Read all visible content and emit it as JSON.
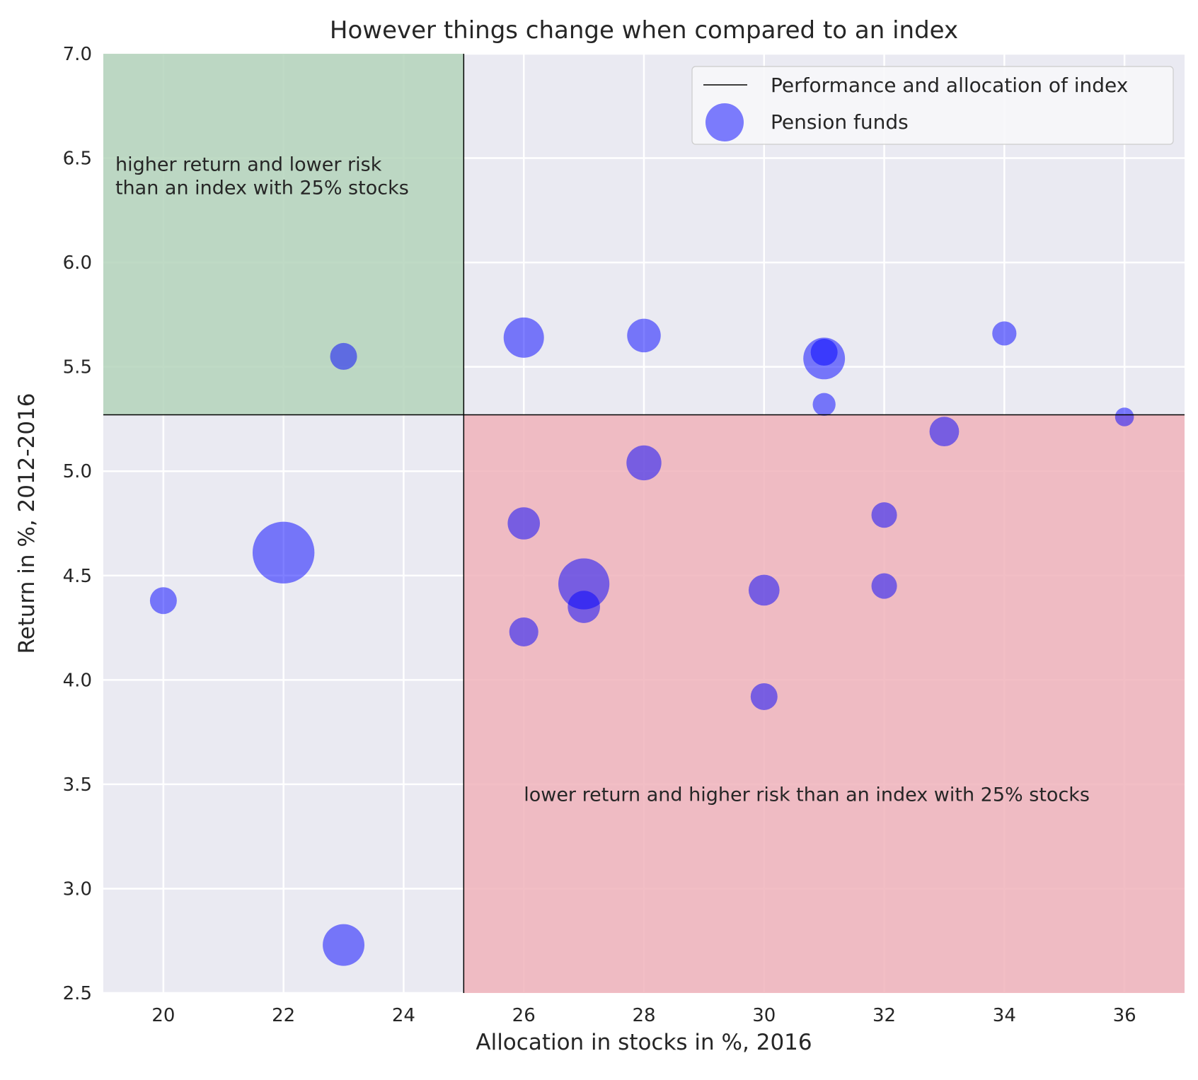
{
  "chart_data": {
    "type": "scatter",
    "title": "However things change when compared to an index",
    "xlabel": "Allocation in stocks in %, 2016",
    "ylabel": "Return in %, 2012-2016",
    "xlim": [
      19,
      37
    ],
    "ylim": [
      2.5,
      7.0
    ],
    "xticks": [
      20,
      22,
      24,
      26,
      28,
      30,
      32,
      34,
      36
    ],
    "xtick_labels": [
      "20",
      "22",
      "24",
      "26",
      "28",
      "30",
      "32",
      "34",
      "36"
    ],
    "yticks": [
      2.5,
      3.0,
      3.5,
      4.0,
      4.5,
      5.0,
      5.5,
      6.0,
      6.5,
      7.0
    ],
    "ytick_labels": [
      "2.5",
      "3.0",
      "3.5",
      "4.0",
      "4.5",
      "5.0",
      "5.5",
      "6.0",
      "6.5",
      "7.0"
    ],
    "grid": true,
    "legend_position": "top-right",
    "colors": {
      "background": "#eaeaf2",
      "grid": "#ffffff",
      "green_region": "#b4d4bb",
      "red_region": "#f0b3bb",
      "points": "#0000ff",
      "index_line": "#000000"
    },
    "index": {
      "x": 25,
      "y": 5.27
    },
    "regions": [
      {
        "name": "green",
        "x": [
          19,
          25
        ],
        "y": [
          5.27,
          7.0
        ]
      },
      {
        "name": "red",
        "x": [
          25,
          37
        ],
        "y": [
          2.5,
          5.27
        ]
      }
    ],
    "legend": {
      "line_label": "Performance and allocation of index",
      "points_label": "Pension funds"
    },
    "annotations": [
      {
        "name": "green-annotation",
        "lines": [
          "higher return and lower risk",
          "than an index with 25% stocks"
        ],
        "x": 19.2,
        "y": 6.44
      },
      {
        "name": "red-annotation",
        "lines": [
          "lower return and higher risk than an index with 25% stocks"
        ],
        "x": 26.0,
        "y": 3.42
      }
    ],
    "series": [
      {
        "name": "Pension funds",
        "points": [
          {
            "x": 20,
            "y": 4.38,
            "size": 1.0
          },
          {
            "x": 22,
            "y": 4.61,
            "size": 2.3
          },
          {
            "x": 23,
            "y": 5.55,
            "size": 1.0
          },
          {
            "x": 23,
            "y": 2.73,
            "size": 1.55
          },
          {
            "x": 26,
            "y": 5.64,
            "size": 1.5
          },
          {
            "x": 26,
            "y": 4.75,
            "size": 1.2
          },
          {
            "x": 26,
            "y": 4.23,
            "size": 1.08
          },
          {
            "x": 27,
            "y": 4.46,
            "size": 1.9
          },
          {
            "x": 27,
            "y": 4.35,
            "size": 1.2
          },
          {
            "x": 28,
            "y": 5.65,
            "size": 1.25
          },
          {
            "x": 28,
            "y": 5.04,
            "size": 1.3
          },
          {
            "x": 30,
            "y": 4.43,
            "size": 1.15
          },
          {
            "x": 30,
            "y": 3.92,
            "size": 1.0
          },
          {
            "x": 31,
            "y": 5.57,
            "size": 1.0
          },
          {
            "x": 31,
            "y": 5.54,
            "size": 1.55
          },
          {
            "x": 31,
            "y": 5.32,
            "size": 0.85
          },
          {
            "x": 32,
            "y": 4.79,
            "size": 0.95
          },
          {
            "x": 32,
            "y": 4.45,
            "size": 0.95
          },
          {
            "x": 33,
            "y": 5.19,
            "size": 1.1
          },
          {
            "x": 34,
            "y": 5.66,
            "size": 0.9
          },
          {
            "x": 36,
            "y": 5.26,
            "size": 0.7
          }
        ]
      }
    ]
  }
}
